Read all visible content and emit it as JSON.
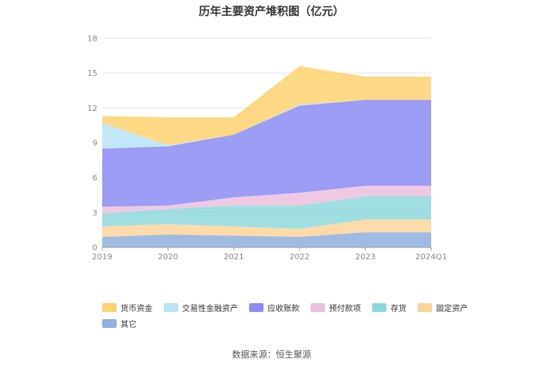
{
  "chart_data": {
    "type": "area",
    "stacked": true,
    "title": "历年主要资产堆积图（亿元）",
    "source": "数据来源：恒生聚源",
    "categories": [
      "2019",
      "2020",
      "2021",
      "2022",
      "2023",
      "2024Q1"
    ],
    "ylim": [
      0,
      18
    ],
    "yticks": [
      "0",
      "3",
      "6",
      "9",
      "12",
      "15",
      "18"
    ],
    "grid": true,
    "legend_position": "bottom",
    "series": [
      {
        "name": "其它",
        "color": "#8fafdc",
        "values": [
          0.9,
          1.1,
          1.0,
          0.9,
          1.3,
          1.3
        ]
      },
      {
        "name": "固定资产",
        "color": "#fcd49a",
        "values": [
          0.9,
          0.9,
          0.8,
          0.7,
          1.1,
          1.1
        ]
      },
      {
        "name": "存货",
        "color": "#8ed8dc",
        "values": [
          1.1,
          1.3,
          1.8,
          2.0,
          2.0,
          2.0
        ]
      },
      {
        "name": "预付款项",
        "color": "#eac1dd",
        "values": [
          0.6,
          0.3,
          0.7,
          1.1,
          0.9,
          0.9
        ]
      },
      {
        "name": "应收账款",
        "color": "#8c8cf4",
        "values": [
          5.0,
          5.1,
          5.4,
          7.5,
          7.4,
          7.4
        ]
      },
      {
        "name": "交易性金融资产",
        "color": "#b7e3f7",
        "values": [
          2.2,
          0.1,
          0.0,
          0.1,
          0.0,
          0.0
        ]
      },
      {
        "name": "货币资金",
        "color": "#fdd270",
        "values": [
          0.6,
          2.4,
          1.5,
          3.3,
          2.0,
          2.0
        ]
      }
    ]
  }
}
